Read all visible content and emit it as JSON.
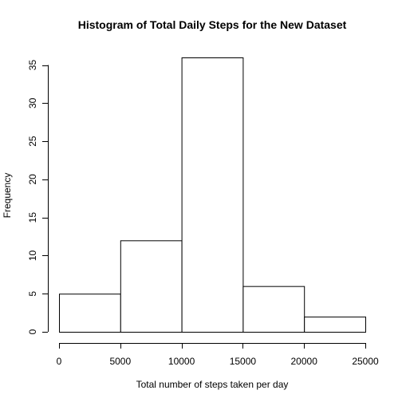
{
  "chart_data": {
    "type": "bar",
    "title": "Histogram of Total Daily Steps for the New Dataset",
    "xlabel": "Total number of steps taken per day",
    "ylabel": "Frequency",
    "bins": [
      {
        "from": 0,
        "to": 5000,
        "count": 5
      },
      {
        "from": 5000,
        "to": 10000,
        "count": 12
      },
      {
        "from": 10000,
        "to": 15000,
        "count": 36
      },
      {
        "from": 15000,
        "to": 20000,
        "count": 6
      },
      {
        "from": 20000,
        "to": 25000,
        "count": 2
      }
    ],
    "xlim": [
      0,
      25000
    ],
    "ylim": [
      0,
      36
    ],
    "xticks": [
      0,
      5000,
      10000,
      15000,
      20000,
      25000
    ],
    "yticks": [
      0,
      5,
      10,
      15,
      20,
      25,
      30,
      35
    ],
    "grid": false,
    "legend": "none"
  }
}
